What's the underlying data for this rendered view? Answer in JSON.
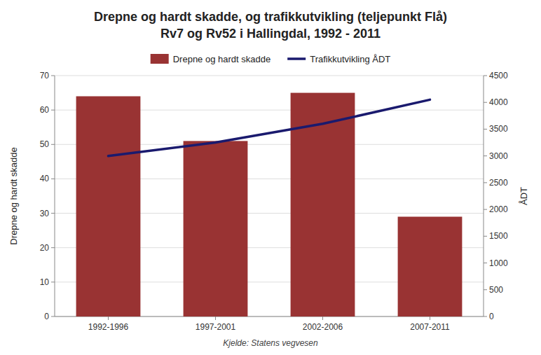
{
  "chart_data": {
    "type": "bar",
    "title": "Drepne og hardt skadde, og trafikkutvikling (teljepunkt Flå)",
    "subtitle": "Rv7 og Rv52 i Hallingdal, 1992 - 2011",
    "categories": [
      "1992-1996",
      "1997-2001",
      "2002-2006",
      "2007-2011"
    ],
    "series": [
      {
        "name": "Drepne og hardt skadde",
        "type": "bar",
        "color": "#993333",
        "values": [
          64,
          51,
          65,
          29
        ]
      },
      {
        "name": "Trafikkutvikling ÅDT",
        "type": "line",
        "axis": "y2",
        "color": "#1a1a6e",
        "values": [
          3000,
          3250,
          3600,
          4050
        ]
      }
    ],
    "ylabel": "Drepne og hardt skadde",
    "y2label": "ÅDT",
    "ylim": [
      0,
      70
    ],
    "yticks": [
      0,
      10,
      20,
      30,
      40,
      50,
      60,
      70
    ],
    "y2lim": [
      0,
      4500
    ],
    "y2ticks": [
      0,
      500,
      1000,
      1500,
      2000,
      2500,
      3000,
      3500,
      4000,
      4500
    ],
    "grid": true,
    "legend": "top",
    "source": "Kjelde: Statens vegvesen"
  }
}
